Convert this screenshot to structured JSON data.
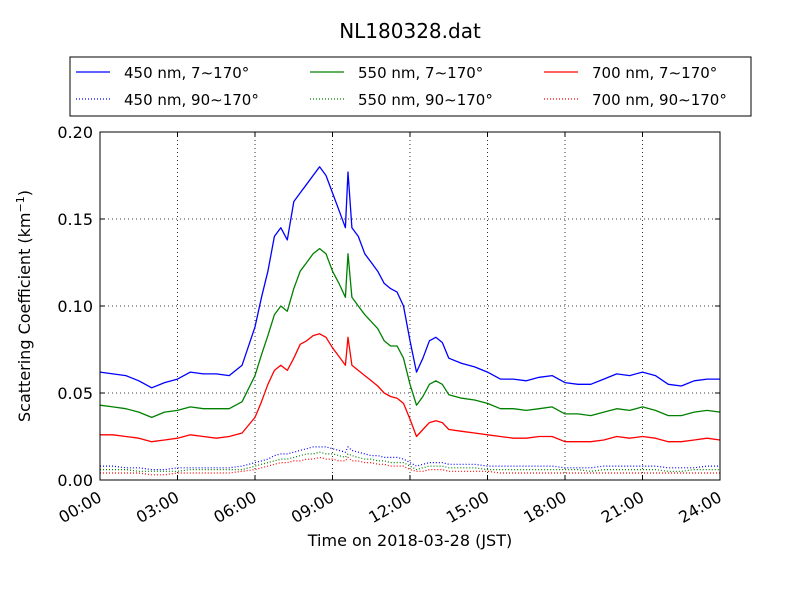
{
  "chart_data": {
    "type": "line",
    "title": "NL180328.dat",
    "xlabel": "Time on 2018-03-28 (JST)",
    "ylabel_main": "Scattering Coefficient (km",
    "ylabel_sup": "−1",
    "ylabel_close": ")",
    "xlim": [
      0,
      24
    ],
    "ylim": [
      0,
      0.2
    ],
    "grid": true,
    "legend_position": "top",
    "x_tick_values": [
      0,
      3,
      6,
      9,
      12,
      15,
      18,
      21,
      24
    ],
    "x_tick_labels": [
      "00:00",
      "03:00",
      "06:00",
      "09:00",
      "12:00",
      "15:00",
      "18:00",
      "21:00",
      "24:00"
    ],
    "y_tick_values": [
      0,
      0.05,
      0.1,
      0.15,
      0.2
    ],
    "y_tick_labels": [
      "0.00",
      "0.05",
      "0.10",
      "0.15",
      "0.20"
    ],
    "x": [
      0,
      0.5,
      1,
      1.5,
      2,
      2.5,
      3,
      3.5,
      4,
      4.5,
      5,
      5.5,
      6,
      6.25,
      6.5,
      6.75,
      7,
      7.25,
      7.5,
      7.75,
      8,
      8.25,
      8.5,
      8.75,
      9,
      9.25,
      9.5,
      9.6,
      9.75,
      10,
      10.25,
      10.5,
      10.75,
      11,
      11.25,
      11.5,
      11.75,
      12,
      12.25,
      12.5,
      12.75,
      13,
      13.25,
      13.5,
      14,
      14.5,
      15,
      15.5,
      16,
      16.5,
      17,
      17.5,
      18,
      18.5,
      19,
      19.5,
      20,
      20.5,
      21,
      21.5,
      22,
      22.5,
      23,
      23.5,
      24
    ],
    "series": [
      {
        "name": "450 nm, 7∼170°",
        "color": "#0000ff",
        "style": "solid",
        "values": [
          0.062,
          0.061,
          0.06,
          0.057,
          0.053,
          0.056,
          0.058,
          0.062,
          0.061,
          0.061,
          0.06,
          0.066,
          0.088,
          0.105,
          0.12,
          0.14,
          0.145,
          0.138,
          0.16,
          0.165,
          0.17,
          0.175,
          0.18,
          0.175,
          0.165,
          0.155,
          0.145,
          0.177,
          0.145,
          0.14,
          0.13,
          0.125,
          0.12,
          0.113,
          0.11,
          0.108,
          0.1,
          0.08,
          0.062,
          0.07,
          0.08,
          0.082,
          0.079,
          0.07,
          0.067,
          0.065,
          0.062,
          0.058,
          0.058,
          0.057,
          0.059,
          0.06,
          0.056,
          0.055,
          0.055,
          0.058,
          0.061,
          0.06,
          0.062,
          0.06,
          0.055,
          0.054,
          0.057,
          0.058,
          0.058
        ]
      },
      {
        "name": "550 nm, 7∼170°",
        "color": "#008000",
        "style": "solid",
        "values": [
          0.043,
          0.042,
          0.041,
          0.039,
          0.036,
          0.039,
          0.04,
          0.042,
          0.041,
          0.041,
          0.041,
          0.045,
          0.06,
          0.072,
          0.083,
          0.095,
          0.1,
          0.097,
          0.11,
          0.12,
          0.125,
          0.13,
          0.133,
          0.13,
          0.12,
          0.113,
          0.105,
          0.13,
          0.105,
          0.1,
          0.095,
          0.091,
          0.087,
          0.08,
          0.077,
          0.077,
          0.07,
          0.055,
          0.043,
          0.048,
          0.055,
          0.057,
          0.055,
          0.049,
          0.047,
          0.046,
          0.044,
          0.041,
          0.041,
          0.04,
          0.041,
          0.042,
          0.038,
          0.038,
          0.037,
          0.039,
          0.041,
          0.04,
          0.042,
          0.04,
          0.037,
          0.037,
          0.039,
          0.04,
          0.039
        ]
      },
      {
        "name": "700 nm, 7∼170°",
        "color": "#ff0000",
        "style": "solid",
        "values": [
          0.026,
          0.026,
          0.025,
          0.024,
          0.022,
          0.023,
          0.024,
          0.026,
          0.025,
          0.024,
          0.025,
          0.027,
          0.036,
          0.045,
          0.055,
          0.063,
          0.066,
          0.063,
          0.07,
          0.078,
          0.08,
          0.083,
          0.084,
          0.082,
          0.076,
          0.071,
          0.066,
          0.082,
          0.066,
          0.063,
          0.06,
          0.057,
          0.054,
          0.05,
          0.048,
          0.047,
          0.044,
          0.035,
          0.025,
          0.029,
          0.033,
          0.034,
          0.033,
          0.029,
          0.028,
          0.027,
          0.026,
          0.025,
          0.024,
          0.024,
          0.025,
          0.025,
          0.022,
          0.022,
          0.022,
          0.023,
          0.025,
          0.024,
          0.025,
          0.024,
          0.022,
          0.022,
          0.023,
          0.024,
          0.023
        ]
      },
      {
        "name": "450 nm, 90∼170°",
        "color": "#0000ff",
        "style": "dotted",
        "values": [
          0.008,
          0.008,
          0.007,
          0.007,
          0.006,
          0.006,
          0.007,
          0.007,
          0.007,
          0.007,
          0.007,
          0.008,
          0.01,
          0.011,
          0.012,
          0.014,
          0.015,
          0.015,
          0.016,
          0.017,
          0.018,
          0.019,
          0.019,
          0.019,
          0.018,
          0.017,
          0.016,
          0.019,
          0.017,
          0.016,
          0.015,
          0.014,
          0.014,
          0.013,
          0.013,
          0.013,
          0.012,
          0.01,
          0.008,
          0.009,
          0.01,
          0.01,
          0.01,
          0.009,
          0.009,
          0.009,
          0.008,
          0.008,
          0.008,
          0.008,
          0.008,
          0.008,
          0.007,
          0.007,
          0.007,
          0.008,
          0.008,
          0.008,
          0.008,
          0.008,
          0.007,
          0.007,
          0.007,
          0.008,
          0.008
        ]
      },
      {
        "name": "550 nm, 90∼170°",
        "color": "#008000",
        "style": "dotted",
        "values": [
          0.006,
          0.006,
          0.006,
          0.005,
          0.005,
          0.005,
          0.005,
          0.006,
          0.006,
          0.006,
          0.006,
          0.006,
          0.008,
          0.009,
          0.01,
          0.011,
          0.012,
          0.012,
          0.013,
          0.014,
          0.015,
          0.015,
          0.016,
          0.015,
          0.015,
          0.014,
          0.013,
          0.015,
          0.014,
          0.013,
          0.012,
          0.012,
          0.011,
          0.011,
          0.01,
          0.01,
          0.01,
          0.008,
          0.006,
          0.007,
          0.008,
          0.008,
          0.008,
          0.007,
          0.007,
          0.007,
          0.006,
          0.006,
          0.006,
          0.006,
          0.006,
          0.006,
          0.006,
          0.006,
          0.005,
          0.006,
          0.006,
          0.006,
          0.006,
          0.006,
          0.005,
          0.005,
          0.006,
          0.006,
          0.006
        ]
      },
      {
        "name": "700 nm, 90∼170°",
        "color": "#ff0000",
        "style": "dotted",
        "values": [
          0.004,
          0.004,
          0.004,
          0.004,
          0.003,
          0.003,
          0.004,
          0.004,
          0.004,
          0.004,
          0.004,
          0.005,
          0.006,
          0.007,
          0.008,
          0.009,
          0.01,
          0.01,
          0.011,
          0.011,
          0.012,
          0.012,
          0.013,
          0.012,
          0.012,
          0.011,
          0.011,
          0.013,
          0.011,
          0.011,
          0.01,
          0.01,
          0.009,
          0.009,
          0.008,
          0.008,
          0.008,
          0.006,
          0.005,
          0.005,
          0.006,
          0.006,
          0.006,
          0.005,
          0.005,
          0.005,
          0.005,
          0.004,
          0.004,
          0.004,
          0.004,
          0.004,
          0.004,
          0.004,
          0.004,
          0.004,
          0.004,
          0.004,
          0.004,
          0.004,
          0.004,
          0.004,
          0.004,
          0.004,
          0.004
        ]
      }
    ]
  }
}
